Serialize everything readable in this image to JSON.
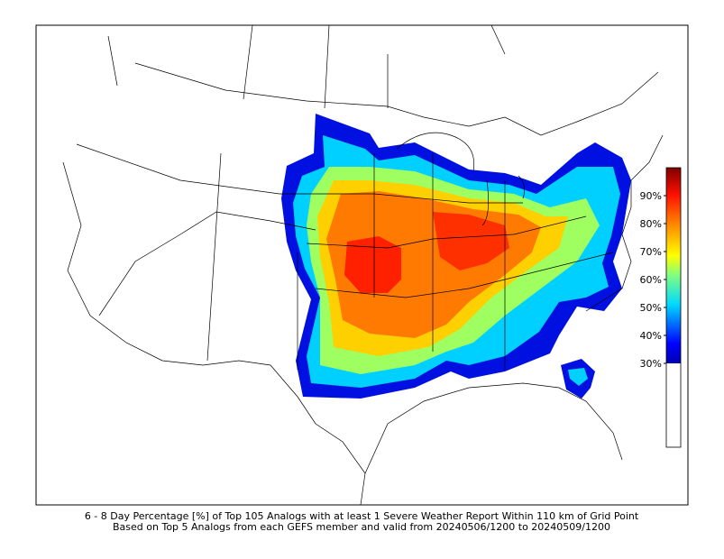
{
  "caption": {
    "line1": "6 - 8 Day Percentage [%] of Top 105 Analogs with at least 1 Severe Weather Report Within 110 km of Grid Point",
    "line2": "Based on Top 5 Analogs from each GEFS member and valid from 20240506/1200 to 20240509/1200"
  },
  "colorbar": {
    "clim": [
      0,
      100
    ],
    "color_start": 30,
    "ticks": [
      {
        "value": 30,
        "label": "30%"
      },
      {
        "value": 40,
        "label": "40%"
      },
      {
        "value": 50,
        "label": "50%"
      },
      {
        "value": 60,
        "label": "60%"
      },
      {
        "value": 70,
        "label": "70%"
      },
      {
        "value": 80,
        "label": "80%"
      },
      {
        "value": 90,
        "label": "90%"
      }
    ]
  }
}
